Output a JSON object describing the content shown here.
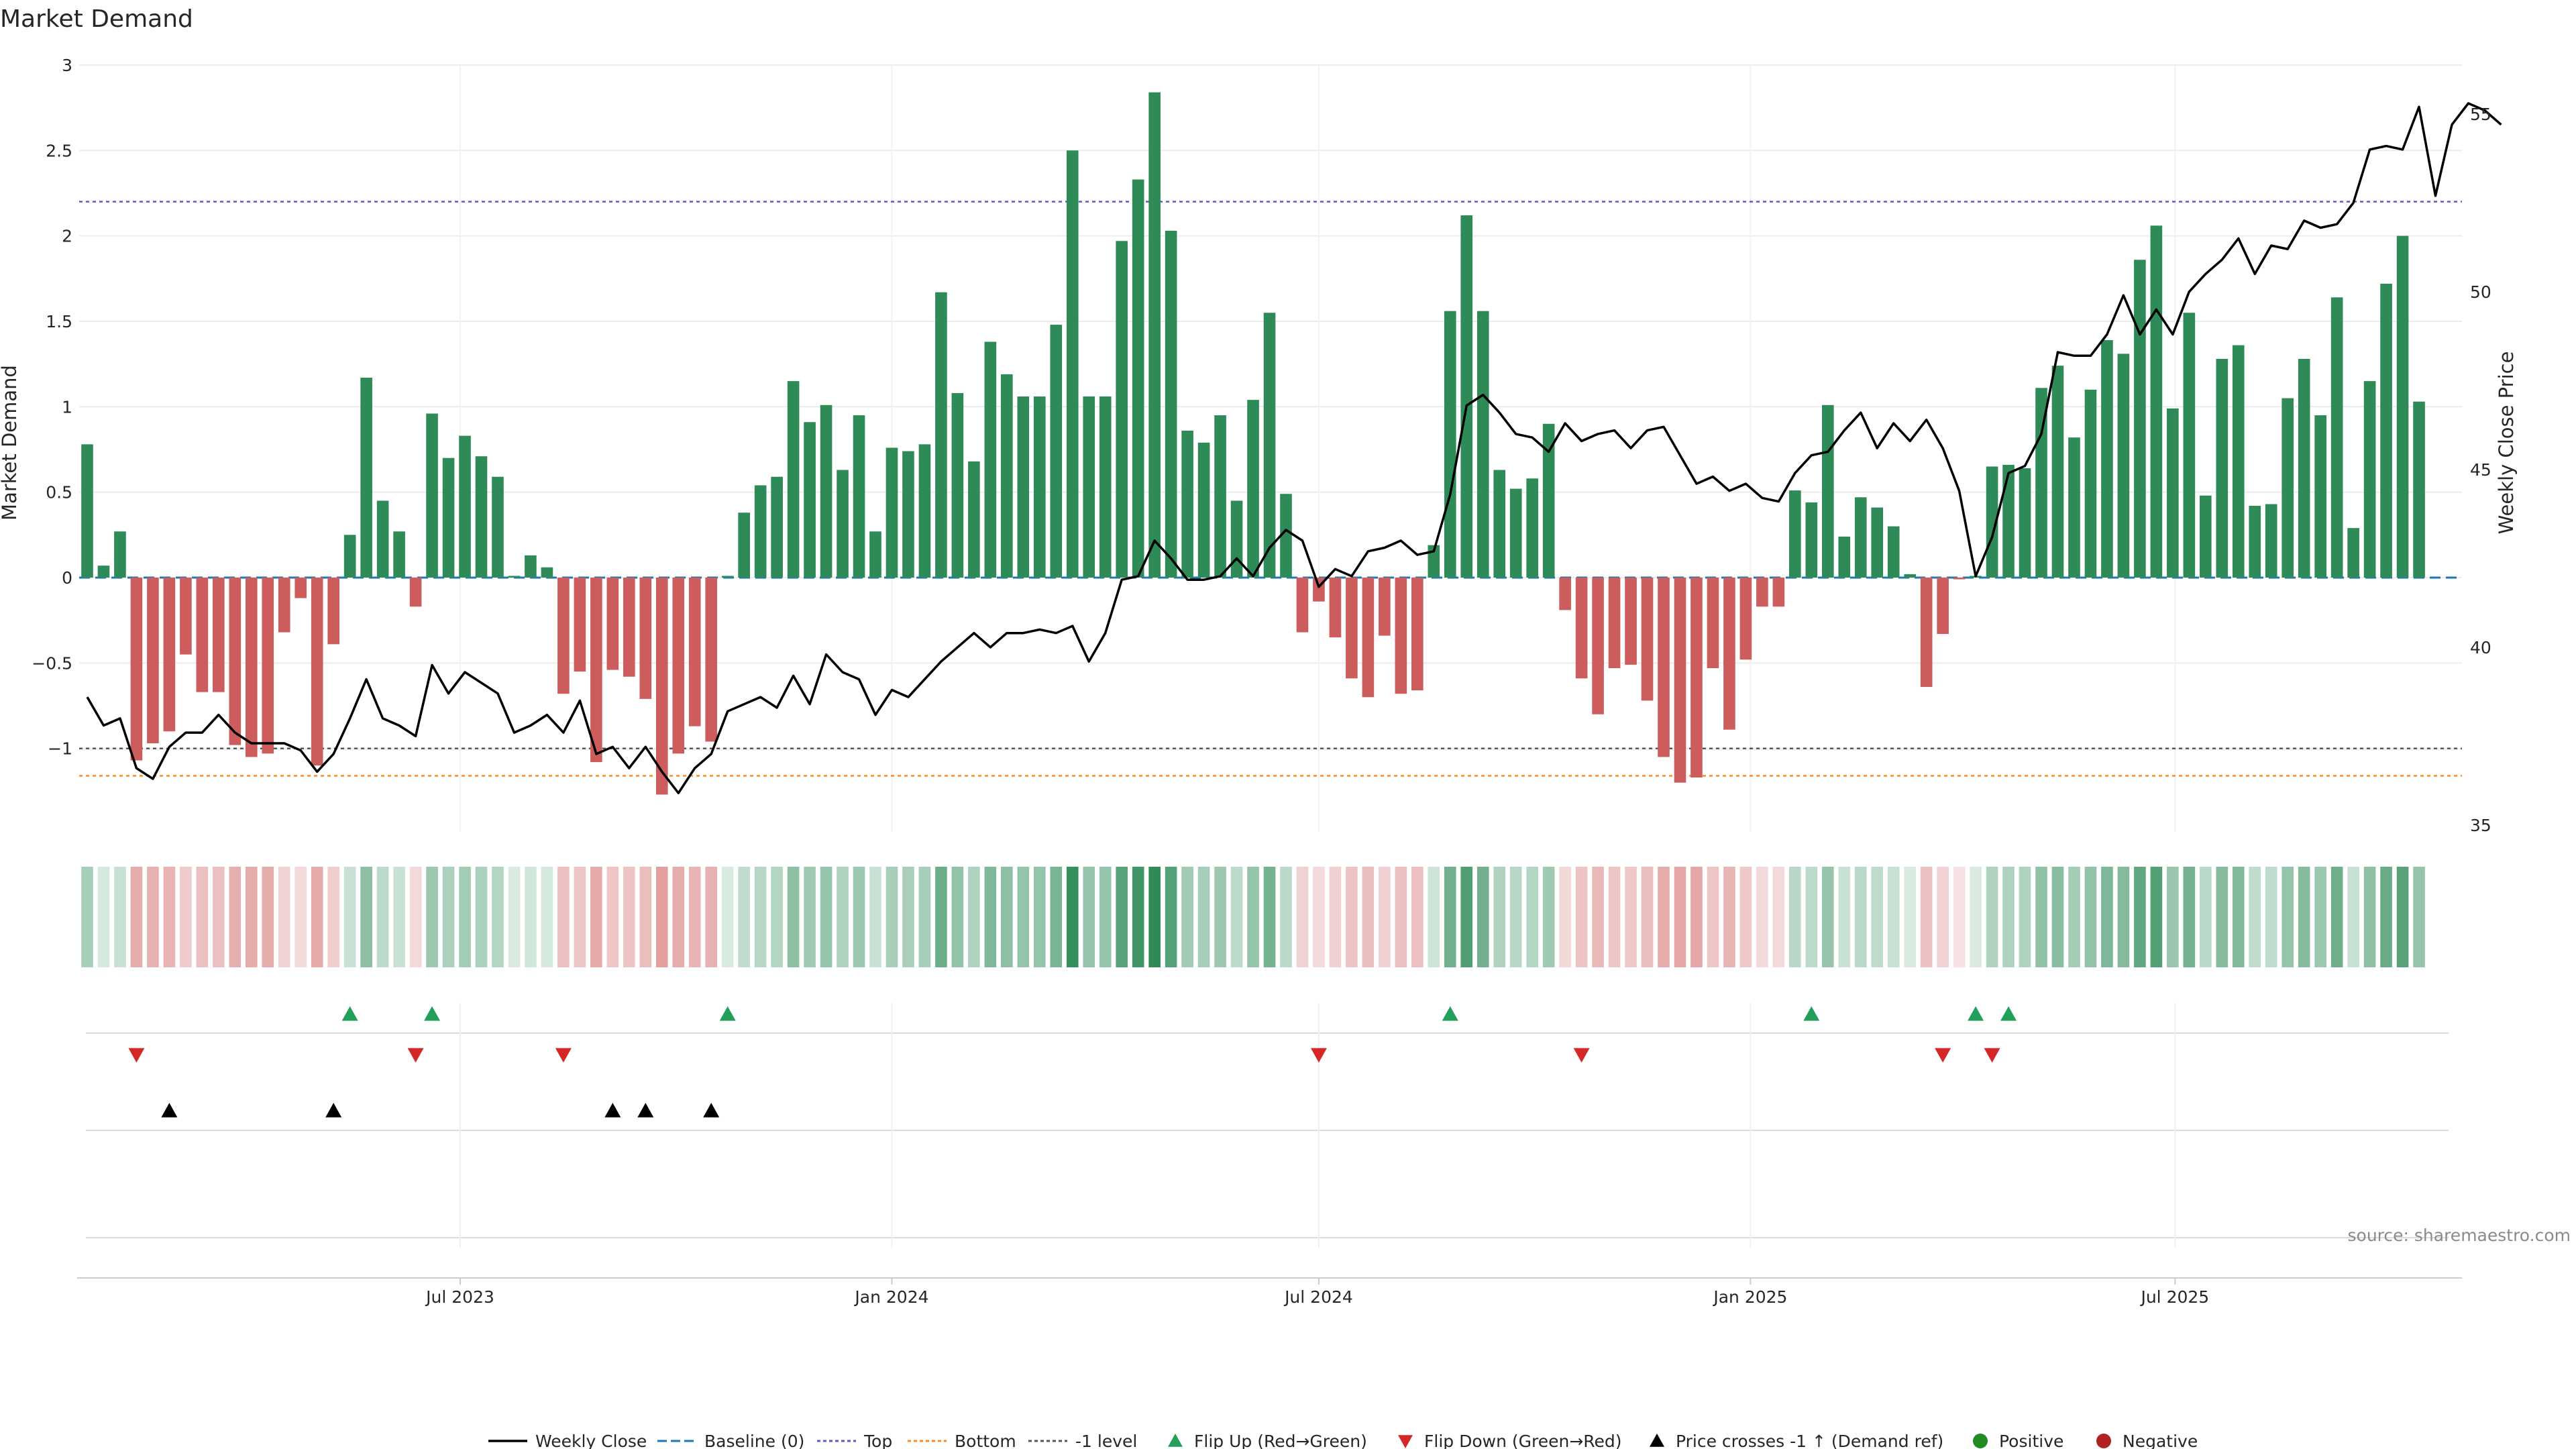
{
  "chart_data": {
    "type": "bar",
    "title": "Market Demand",
    "ylabel": "Market Demand",
    "y2label": "Weekly Close Price",
    "ylim": [
      -1.5,
      3
    ],
    "y2lim": [
      34.5,
      56.5
    ],
    "yticks": [
      3,
      2.5,
      2,
      1.5,
      1,
      0.5,
      0,
      -0.5,
      -1
    ],
    "ytick_labels": [
      "3",
      "2.5",
      "2",
      "1.5",
      "1",
      "0.5",
      "0",
      "−0.5",
      "−1"
    ],
    "y2ticks": [
      55,
      50,
      45,
      40,
      35
    ],
    "y2tick_labels": [
      "55",
      "50",
      "45",
      "40",
      "35"
    ],
    "levels": {
      "top": 2.2,
      "bottom": -1.16,
      "minus_one": -1.0,
      "baseline": 0
    },
    "start_date": "2023-01-23",
    "week_count": 145,
    "x_tick_labels": [
      "Jul 2023",
      "Jan 2024",
      "Jul 2024",
      "Jan 2025",
      "Jul 2025"
    ],
    "x_tick_dates": [
      "2023-07-01",
      "2024-01-01",
      "2024-07-01",
      "2025-01-01",
      "2025-07-01"
    ],
    "demand": [
      0.78,
      0.07,
      0.27,
      -1.07,
      -0.97,
      -0.9,
      -0.45,
      -0.67,
      -0.67,
      -0.98,
      -1.05,
      -1.03,
      -0.32,
      -0.12,
      -1.1,
      -0.39,
      0.25,
      1.17,
      0.45,
      0.27,
      -0.17,
      0.96,
      0.7,
      0.83,
      0.71,
      0.59,
      0.01,
      0.13,
      0.06,
      -0.68,
      -0.55,
      -1.08,
      -0.54,
      -0.58,
      -0.71,
      -1.27,
      -1.03,
      -0.87,
      -0.96,
      0.01,
      0.38,
      0.54,
      0.59,
      1.15,
      0.91,
      1.01,
      0.63,
      0.95,
      0.27,
      0.76,
      0.74,
      0.78,
      1.67,
      1.08,
      0.68,
      1.38,
      1.19,
      1.06,
      1.06,
      1.48,
      2.5,
      1.06,
      1.06,
      1.97,
      2.33,
      2.84,
      2.03,
      0.86,
      0.79,
      0.95,
      0.45,
      1.04,
      1.55,
      0.49,
      -0.32,
      -0.14,
      -0.35,
      -0.59,
      -0.7,
      -0.34,
      -0.68,
      -0.66,
      0.19,
      1.56,
      2.12,
      1.56,
      0.63,
      0.52,
      0.58,
      0.9,
      -0.19,
      -0.59,
      -0.8,
      -0.53,
      -0.51,
      -0.72,
      -1.05,
      -1.2,
      -1.17,
      -0.53,
      -0.89,
      -0.48,
      -0.17,
      -0.17,
      0.51,
      0.44,
      1.01,
      0.24,
      0.47,
      0.41,
      0.3,
      0.02,
      -0.64,
      -0.33,
      -0.01,
      0.01,
      0.65,
      0.66,
      0.64,
      1.11,
      1.24,
      0.82,
      1.1,
      1.39,
      1.31,
      1.86,
      2.06,
      0.99,
      1.55,
      0.48,
      1.28,
      1.36,
      0.42,
      0.43,
      1.05,
      1.28,
      0.95,
      1.64,
      0.29,
      1.15,
      1.72,
      2.0,
      1.03
    ],
    "close": [
      38.6,
      37.8,
      38.0,
      36.6,
      36.3,
      37.2,
      37.6,
      37.6,
      38.1,
      37.6,
      37.3,
      37.3,
      37.3,
      37.1,
      36.5,
      37.0,
      38.0,
      39.1,
      38.0,
      37.8,
      37.5,
      39.5,
      38.7,
      39.3,
      39.0,
      38.7,
      37.6,
      37.8,
      38.1,
      37.6,
      38.5,
      37.0,
      37.2,
      36.6,
      37.2,
      36.5,
      35.9,
      36.6,
      37.0,
      38.2,
      38.4,
      38.6,
      38.3,
      39.2,
      38.4,
      39.8,
      39.3,
      39.1,
      38.1,
      38.8,
      38.6,
      39.1,
      39.6,
      40.0,
      40.4,
      40.0,
      40.4,
      40.4,
      40.5,
      40.4,
      40.6,
      39.6,
      40.4,
      41.9,
      42.0,
      43.0,
      42.5,
      41.9,
      41.9,
      42.0,
      42.5,
      42.0,
      42.8,
      43.3,
      43.0,
      41.7,
      42.2,
      42.0,
      42.7,
      42.8,
      43.0,
      42.6,
      42.7,
      44.3,
      46.8,
      47.1,
      46.6,
      46.0,
      45.9,
      45.5,
      46.3,
      45.8,
      46.0,
      46.1,
      45.6,
      46.1,
      46.2,
      45.4,
      44.6,
      44.8,
      44.4,
      44.6,
      44.2,
      44.1,
      44.9,
      45.4,
      45.5,
      46.1,
      46.6,
      45.6,
      46.3,
      45.8,
      46.4,
      45.6,
      44.4,
      42.0,
      43.1,
      44.9,
      45.1,
      46.0,
      48.3,
      48.2,
      48.2,
      48.8,
      49.9,
      48.8,
      49.5,
      48.8,
      50.0,
      50.5,
      50.9,
      51.5,
      50.5,
      51.3,
      51.2,
      52.0,
      51.8,
      51.9,
      52.5,
      54.0,
      54.1,
      54.0,
      55.2,
      52.7,
      54.7,
      55.3,
      55.1,
      54.7
    ],
    "flip_up_weeks": [
      16,
      21,
      39,
      83,
      105,
      115,
      117
    ],
    "flip_down_weeks": [
      3,
      20,
      29,
      75,
      91,
      113,
      116
    ],
    "cross_weeks": [
      5,
      15,
      32,
      34,
      38
    ],
    "legend": [
      "Weekly Close",
      "Baseline (0)",
      "Top",
      "Bottom",
      "-1 level",
      "Flip Up (Red→Green)",
      "Flip Down (Green→Red)",
      "Price crosses -1 ↑ (Demand ref)",
      "Positive",
      "Negative"
    ],
    "source": "source: sharemaestro.com",
    "colors": {
      "positive": "#2e8b57",
      "negative": "#cd5c5c",
      "close_line": "#000000",
      "baseline": "#1f77b4",
      "top": "#5a5ac8",
      "bottom": "#ff8c1a",
      "minus_one": "#555555",
      "flip_up": "#22a05a",
      "flip_down": "#d62728",
      "cross": "#000000",
      "legend_positive": "#228b22",
      "legend_negative": "#b22222"
    }
  }
}
